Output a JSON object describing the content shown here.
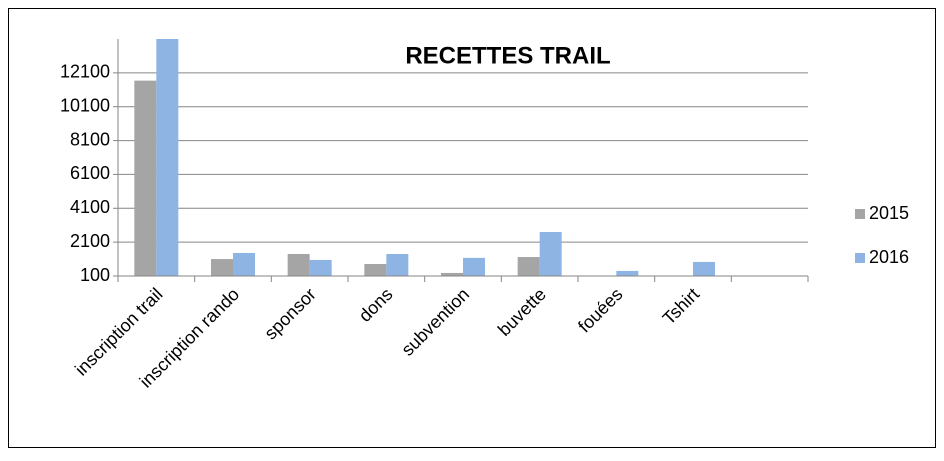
{
  "chart_data": {
    "type": "bar",
    "title": "RECETTES TRAIL",
    "categories": [
      "inscription trail",
      "inscription rando",
      "sponsor",
      "dons",
      "subvention",
      "buvette",
      "fouées",
      "Tshirt",
      null
    ],
    "series": [
      {
        "name": "2015",
        "color": "#a5a5a5",
        "values": [
          11640,
          1100,
          1400,
          810,
          280,
          1220,
          120,
          130,
          null
        ]
      },
      {
        "name": "2016",
        "color": "#8eb4e3",
        "values": [
          14100,
          1460,
          1050,
          1400,
          1170,
          2700,
          400,
          930,
          null
        ]
      }
    ],
    "ylim": [
      100,
      14100
    ],
    "yticks": [
      100,
      2100,
      4100,
      6100,
      8100,
      10100,
      12100
    ],
    "grid": true,
    "legend": "right"
  }
}
